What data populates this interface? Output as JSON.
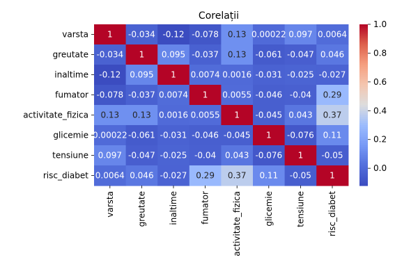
{
  "chart_data": {
    "type": "heatmap",
    "title": "Corelații",
    "rows": [
      "varsta",
      "greutate",
      "inaltime",
      "fumator",
      "activitate_fizica",
      "glicemie",
      "tensiune",
      "risc_diabet"
    ],
    "cols": [
      "varsta",
      "greutate",
      "inaltime",
      "fumator",
      "activitate_fizica",
      "glicemie",
      "tensiune",
      "risc_diabet"
    ],
    "values": [
      [
        1,
        -0.034,
        -0.12,
        -0.078,
        0.13,
        0.00022,
        0.097,
        0.0064
      ],
      [
        -0.034,
        1,
        0.095,
        -0.037,
        0.13,
        -0.061,
        -0.047,
        0.046
      ],
      [
        -0.12,
        0.095,
        1,
        0.0074,
        0.0016,
        -0.031,
        -0.025,
        -0.027
      ],
      [
        -0.078,
        -0.037,
        0.0074,
        1,
        0.0055,
        -0.046,
        -0.04,
        0.29
      ],
      [
        0.13,
        0.13,
        0.0016,
        0.0055,
        1,
        -0.045,
        0.043,
        0.37
      ],
      [
        0.00022,
        -0.061,
        -0.031,
        -0.046,
        -0.045,
        1,
        -0.076,
        0.11
      ],
      [
        0.097,
        -0.047,
        -0.025,
        -0.04,
        0.043,
        -0.076,
        1,
        -0.05
      ],
      [
        0.0064,
        0.046,
        -0.027,
        0.29,
        0.37,
        0.11,
        -0.05,
        1
      ]
    ],
    "annotations": [
      [
        "1",
        "-0.034",
        "-0.12",
        "-0.078",
        "0.13",
        "0.00022",
        "0.097",
        "0.0064"
      ],
      [
        "-0.034",
        "1",
        "0.095",
        "-0.037",
        "0.13",
        "-0.061",
        "-0.047",
        "0.046"
      ],
      [
        "-0.12",
        "0.095",
        "1",
        "0.0074",
        "0.0016",
        "-0.031",
        "-0.025",
        "-0.027"
      ],
      [
        "-0.078",
        "-0.037",
        "0.0074",
        "1",
        "0.0055",
        "-0.046",
        "-0.04",
        "0.29"
      ],
      [
        "0.13",
        "0.13",
        "0.0016",
        "0.0055",
        "1",
        "-0.045",
        "0.043",
        "0.37"
      ],
      [
        "0.00022",
        "-0.061",
        "-0.031",
        "-0.046",
        "-0.045",
        "1",
        "-0.076",
        "0.11"
      ],
      [
        "0.097",
        "-0.047",
        "-0.025",
        "-0.04",
        "0.043",
        "-0.076",
        "1",
        "-0.05"
      ],
      [
        "0.0064",
        "0.046",
        "-0.027",
        "0.29",
        "0.37",
        "0.11",
        "-0.05",
        "1"
      ]
    ],
    "colormap": "coolwarm",
    "colorbar": {
      "range": [
        -0.12,
        1.0
      ],
      "ticks": [
        0.0,
        0.2,
        0.4,
        0.6,
        0.8,
        1.0
      ],
      "tick_labels": [
        "0.0",
        "0.2",
        "0.4",
        "0.6",
        "0.8",
        "1.0"
      ]
    }
  }
}
